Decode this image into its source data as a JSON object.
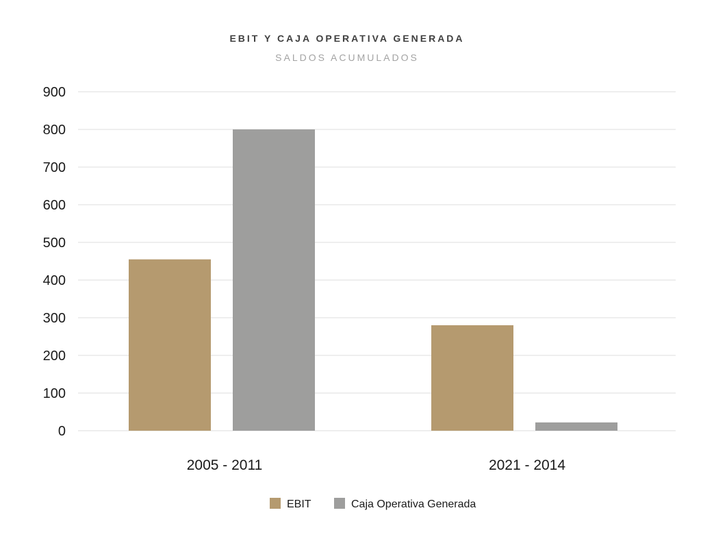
{
  "chart_data": {
    "type": "bar",
    "title": "EBIT Y CAJA OPERATIVA GENERADA",
    "subtitle": "SALDOS ACUMULADOS",
    "categories": [
      "2005 - 2011",
      "2021 - 2014"
    ],
    "series": [
      {
        "name": "EBIT",
        "values": [
          455,
          280
        ],
        "color": "#b59a6f"
      },
      {
        "name": "Caja Operativa Generada",
        "values": [
          800,
          22
        ],
        "color": "#9e9e9d"
      }
    ],
    "ylim": [
      0,
      900
    ],
    "yticks": [
      0,
      100,
      200,
      300,
      400,
      500,
      600,
      700,
      800,
      900
    ],
    "ytick_labels": [
      "0",
      "100",
      "200",
      "300",
      "400",
      "500",
      "600",
      "700",
      "800",
      "900"
    ],
    "grid": true,
    "legend_position": "bottom-center"
  }
}
